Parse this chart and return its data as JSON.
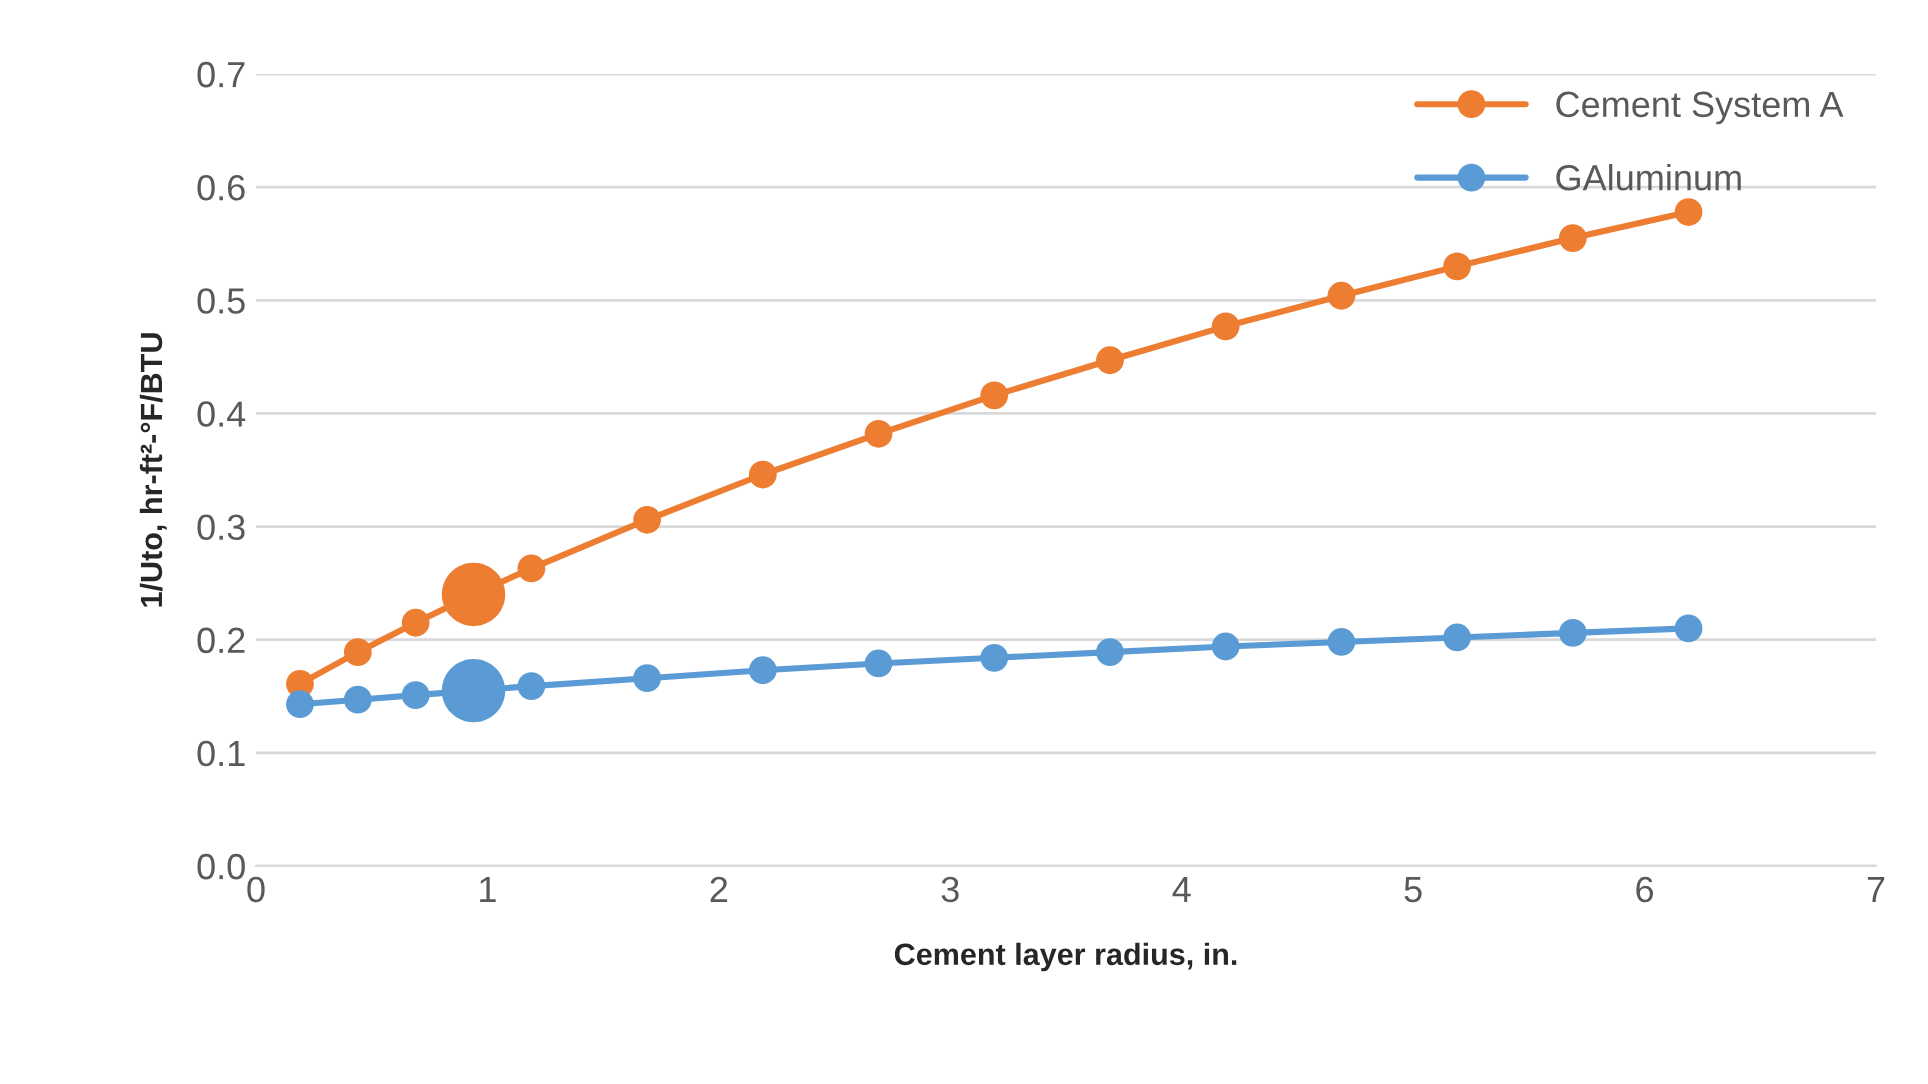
{
  "chart_data": {
    "type": "line",
    "xlabel": "Cement layer radius, in.",
    "ylabel": "1/Uto, hr-ft²-°F/BTU",
    "x": [
      0.19,
      0.44,
      0.69,
      0.94,
      1.19,
      1.69,
      2.19,
      2.69,
      3.19,
      3.69,
      4.19,
      4.69,
      5.19,
      5.69,
      6.19
    ],
    "series": [
      {
        "name": "Cement System A",
        "color": "#ed7d31",
        "values": [
          0.161,
          0.189,
          0.215,
          0.24,
          0.263,
          0.306,
          0.346,
          0.382,
          0.416,
          0.447,
          0.477,
          0.504,
          0.53,
          0.555,
          0.578
        ]
      },
      {
        "name": "GAluminum",
        "color": "#5b9bd5",
        "values": [
          0.143,
          0.147,
          0.151,
          0.155,
          0.159,
          0.166,
          0.173,
          0.179,
          0.184,
          0.189,
          0.194,
          0.198,
          0.202,
          0.206,
          0.21
        ]
      },
      {
        "type": "scatter",
        "color": "#ed7d31",
        "x": [
          0.94
        ],
        "values": [
          0.24
        ]
      },
      {
        "type": "scatter",
        "color": "#5b9bd5",
        "x": [
          0.94
        ],
        "values": [
          0.155
        ]
      }
    ],
    "xlim": [
      0,
      7
    ],
    "xticks": [
      0,
      1,
      2,
      3,
      4,
      5,
      6,
      7
    ],
    "ylim": [
      0,
      0.7
    ],
    "yticks": [
      {
        "value": 0,
        "label": "0.0"
      },
      {
        "value": 0.1,
        "label": "0.1"
      },
      {
        "value": 0.2,
        "label": "0.2"
      },
      {
        "value": 0.3,
        "label": "0.3"
      },
      {
        "value": 0.4,
        "label": "0.4"
      },
      {
        "value": 0.5,
        "label": "0.5"
      },
      {
        "value": 0.6,
        "label": "0.6"
      },
      {
        "value": 0.7,
        "label": "0.7"
      }
    ],
    "grid": "y",
    "legend": "top right",
    "marker": "circle",
    "line_style": "solid"
  }
}
